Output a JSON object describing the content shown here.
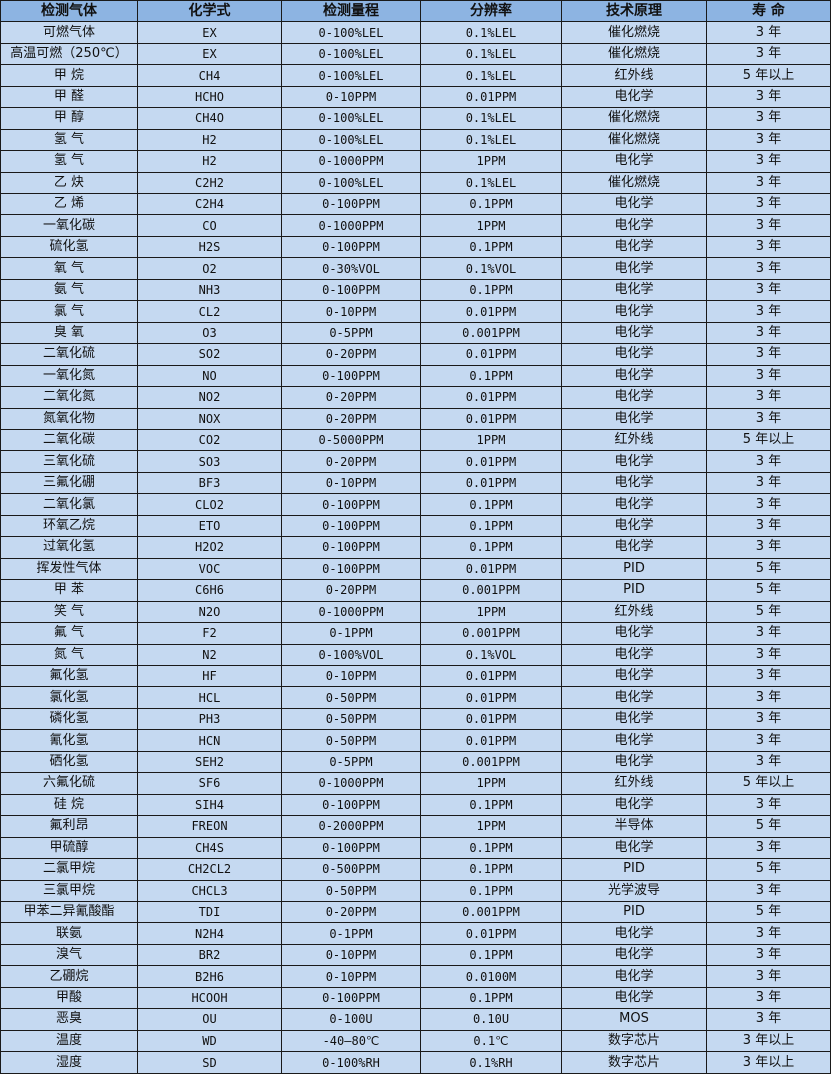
{
  "colors": {
    "header_bg": "#8db4e2",
    "row_bg": "#c5d9f1",
    "border": "#1a1a1a"
  },
  "headers": [
    "检测气体",
    "化学式",
    "检测量程",
    "分辨率",
    "技术原理",
    "寿 命"
  ],
  "rows": [
    [
      "可燃气体",
      "EX",
      "0-100%LEL",
      "0.1%LEL",
      "催化燃烧",
      "3 年"
    ],
    [
      "高温可燃（250℃）",
      "EX",
      "0-100%LEL",
      "0.1%LEL",
      "催化燃烧",
      "3 年"
    ],
    [
      "甲 烷",
      "CH4",
      "0-100%LEL",
      "0.1%LEL",
      "红外线",
      "5 年以上"
    ],
    [
      "甲 醛",
      "HCHO",
      "0-10PPM",
      "0.01PPM",
      "电化学",
      "3 年"
    ],
    [
      "甲 醇",
      "CH4O",
      "0-100%LEL",
      "0.1%LEL",
      "催化燃烧",
      "3 年"
    ],
    [
      "氢 气",
      "H2",
      "0-100%LEL",
      "0.1%LEL",
      "催化燃烧",
      "3 年"
    ],
    [
      "氢 气",
      "H2",
      "0-1000PPM",
      "1PPM",
      "电化学",
      "3 年"
    ],
    [
      "乙 炔",
      "C2H2",
      "0-100%LEL",
      "0.1%LEL",
      "催化燃烧",
      "3 年"
    ],
    [
      "乙 烯",
      "C2H4",
      "0-100PPM",
      "0.1PPM",
      "电化学",
      "3 年"
    ],
    [
      "一氧化碳",
      "CO",
      "0-1000PPM",
      "1PPM",
      "电化学",
      "3 年"
    ],
    [
      "硫化氢",
      "H2S",
      "0-100PPM",
      "0.1PPM",
      "电化学",
      "3 年"
    ],
    [
      "氧 气",
      "O2",
      "0-30%VOL",
      "0.1%VOL",
      "电化学",
      "3 年"
    ],
    [
      "氨 气",
      "NH3",
      "0-100PPM",
      "0.1PPM",
      "电化学",
      "3 年"
    ],
    [
      "氯 气",
      "CL2",
      "0-10PPM",
      "0.01PPM",
      "电化学",
      "3 年"
    ],
    [
      "臭 氧",
      "O3",
      "0-5PPM",
      "0.001PPM",
      "电化学",
      "3 年"
    ],
    [
      "二氧化硫",
      "SO2",
      "0-20PPM",
      "0.01PPM",
      "电化学",
      "3 年"
    ],
    [
      "一氧化氮",
      "NO",
      "0-100PPM",
      "0.1PPM",
      "电化学",
      "3 年"
    ],
    [
      "二氧化氮",
      "NO2",
      "0-20PPM",
      "0.01PPM",
      "电化学",
      "3 年"
    ],
    [
      "氮氧化物",
      "NOX",
      "0-20PPM",
      "0.01PPM",
      "电化学",
      "3 年"
    ],
    [
      "二氧化碳",
      "CO2",
      "0-5000PPM",
      "1PPM",
      "红外线",
      "5 年以上"
    ],
    [
      "三氧化硫",
      "SO3",
      "0-20PPM",
      "0.01PPM",
      "电化学",
      "3 年"
    ],
    [
      "三氟化硼",
      "BF3",
      "0-10PPM",
      "0.01PPM",
      "电化学",
      "3 年"
    ],
    [
      "二氧化氯",
      "CLO2",
      "0-100PPM",
      "0.1PPM",
      "电化学",
      "3 年"
    ],
    [
      "环氧乙烷",
      "ETO",
      "0-100PPM",
      "0.1PPM",
      "电化学",
      "3 年"
    ],
    [
      "过氧化氢",
      "H2O2",
      "0-100PPM",
      "0.1PPM",
      "电化学",
      "3 年"
    ],
    [
      "挥发性气体",
      "VOC",
      "0-100PPM",
      "0.01PPM",
      "PID",
      "5 年"
    ],
    [
      "甲 苯",
      "C6H6",
      "0-20PPM",
      "0.001PPM",
      "PID",
      "5 年"
    ],
    [
      "笑 气",
      "N2O",
      "0-1000PPM",
      "1PPM",
      "红外线",
      "5 年"
    ],
    [
      "氟 气",
      "F2",
      "0-1PPM",
      "0.001PPM",
      "电化学",
      "3 年"
    ],
    [
      "氮 气",
      "N2",
      "0-100%VOL",
      "0.1%VOL",
      "电化学",
      "3 年"
    ],
    [
      "氟化氢",
      "HF",
      "0-10PPM",
      "0.01PPM",
      "电化学",
      "3 年"
    ],
    [
      "氯化氢",
      "HCL",
      "0-50PPM",
      "0.01PPM",
      "电化学",
      "3 年"
    ],
    [
      "磷化氢",
      "PH3",
      "0-50PPM",
      "0.01PPM",
      "电化学",
      "3 年"
    ],
    [
      "氰化氢",
      "HCN",
      "0-50PPM",
      "0.01PPM",
      "电化学",
      "3 年"
    ],
    [
      "硒化氢",
      "SEH2",
      "0-5PPM",
      "0.001PPM",
      "电化学",
      "3 年"
    ],
    [
      "六氟化硫",
      "SF6",
      "0-1000PPM",
      "1PPM",
      "红外线",
      "5 年以上"
    ],
    [
      "硅 烷",
      "SIH4",
      "0-100PPM",
      "0.1PPM",
      "电化学",
      "3 年"
    ],
    [
      "氟利昂",
      "FREON",
      "0-2000PPM",
      "1PPM",
      "半导体",
      "5 年"
    ],
    [
      "甲硫醇",
      "CH4S",
      "0-100PPM",
      "0.1PPM",
      "电化学",
      "3 年"
    ],
    [
      "二氯甲烷",
      "CH2CL2",
      "0-500PPM",
      "0.1PPM",
      "PID",
      "5 年"
    ],
    [
      "三氯甲烷",
      "CHCL3",
      "0-50PPM",
      "0.1PPM",
      "光学波导",
      "3 年"
    ],
    [
      "甲苯二异氰酸酯",
      "TDI",
      "0-20PPM",
      "0.001PPM",
      "PID",
      "5 年"
    ],
    [
      "联氨",
      "N2H4",
      "0-1PPM",
      "0.01PPM",
      "电化学",
      "3 年"
    ],
    [
      "溴气",
      "BR2",
      "0-10PPM",
      "0.1PPM",
      "电化学",
      "3 年"
    ],
    [
      "乙硼烷",
      "B2H6",
      "0-10PPM",
      "0.0100M",
      "电化学",
      "3 年"
    ],
    [
      "甲酸",
      "HCOOH",
      "0-100PPM",
      "0.1PPM",
      "电化学",
      "3 年"
    ],
    [
      "恶臭",
      "OU",
      "0-100U",
      "0.10U",
      "MOS",
      "3 年"
    ],
    [
      "温度",
      "WD",
      "-40—80℃",
      "0.1℃",
      "数字芯片",
      "3 年以上"
    ],
    [
      "湿度",
      "SD",
      "0-100%RH",
      "0.1%RH",
      "数字芯片",
      "3 年以上"
    ]
  ]
}
